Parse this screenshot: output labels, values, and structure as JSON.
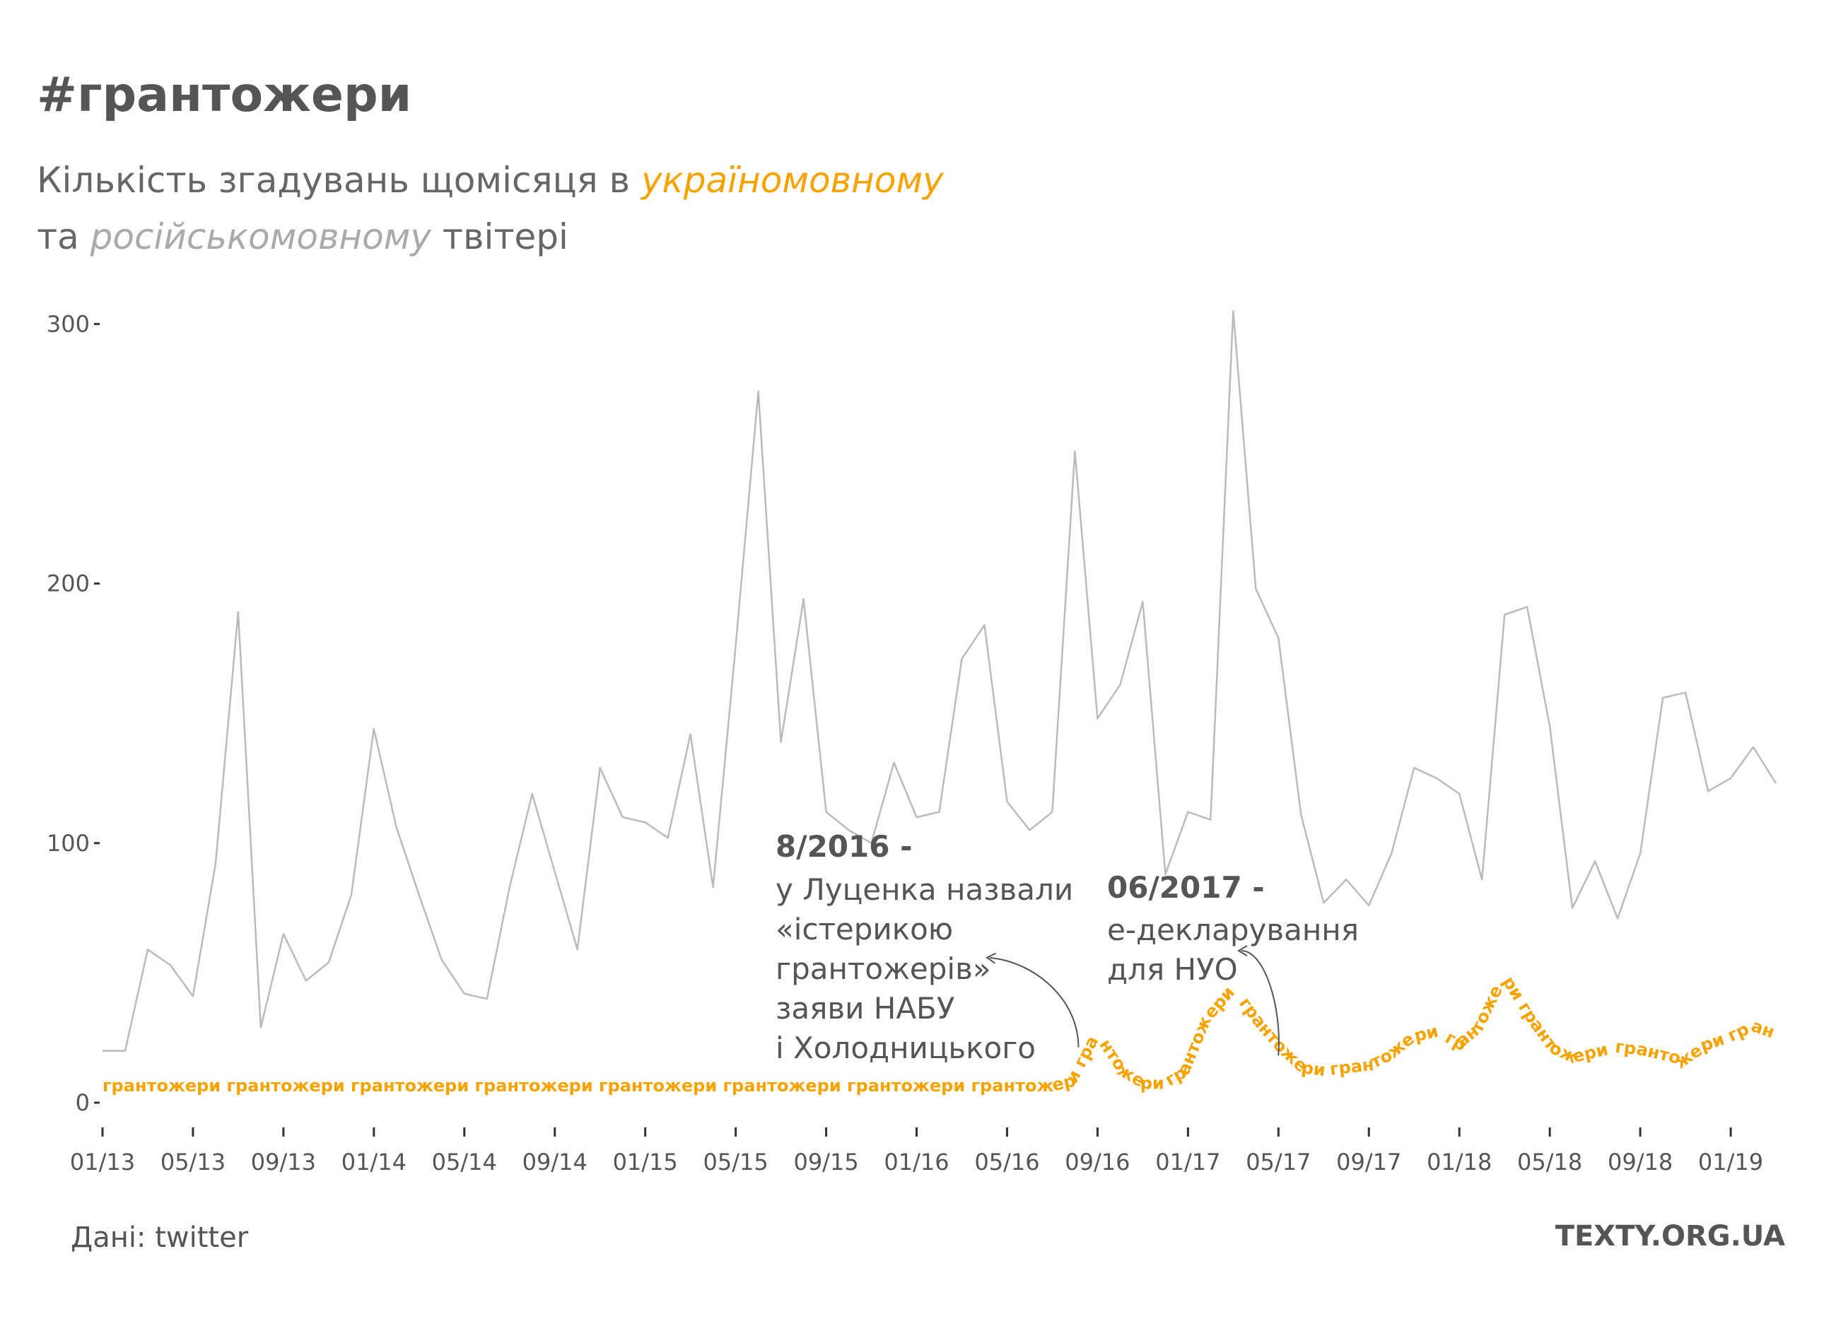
{
  "header": {
    "title": "#грантожери",
    "subtitle_prefix": "Кількість згадувань щомісяця в ",
    "subtitle_uk": "україномовному",
    "subtitle_mid": "та ",
    "subtitle_ru": "російськомовному",
    "subtitle_suffix": " твітері"
  },
  "footer": {
    "source": "Дані: twitter",
    "brand": "TEXTY.ORG.UA"
  },
  "colors": {
    "ukrainian": "#F5A300",
    "russian": "#BBBBBB",
    "text": "#555555",
    "axis": "#333333"
  },
  "chart_data": {
    "type": "line",
    "title": "#грантожери",
    "ylim": [
      0,
      305
    ],
    "yticks": [
      0,
      100,
      200,
      300
    ],
    "x_tick_labels": [
      "01/13",
      "05/13",
      "09/13",
      "01/14",
      "05/14",
      "09/14",
      "01/15",
      "05/15",
      "09/15",
      "01/16",
      "05/16",
      "09/16",
      "01/17",
      "05/17",
      "09/17",
      "01/18",
      "05/18",
      "09/18",
      "01/19"
    ],
    "x_start": "2013-01",
    "x": [
      "2013-01",
      "2013-02",
      "2013-03",
      "2013-04",
      "2013-05",
      "2013-06",
      "2013-07",
      "2013-08",
      "2013-09",
      "2013-10",
      "2013-11",
      "2013-12",
      "2014-01",
      "2014-02",
      "2014-03",
      "2014-04",
      "2014-05",
      "2014-06",
      "2014-07",
      "2014-08",
      "2014-09",
      "2014-10",
      "2014-11",
      "2014-12",
      "2015-01",
      "2015-02",
      "2015-03",
      "2015-04",
      "2015-05",
      "2015-06",
      "2015-07",
      "2015-08",
      "2015-09",
      "2015-10",
      "2015-11",
      "2015-12",
      "2016-01",
      "2016-02",
      "2016-03",
      "2016-04",
      "2016-05",
      "2016-06",
      "2016-07",
      "2016-08",
      "2016-09",
      "2016-10",
      "2016-11",
      "2016-12",
      "2017-01",
      "2017-02",
      "2017-03",
      "2017-04",
      "2017-05",
      "2017-06",
      "2017-07",
      "2017-08",
      "2017-09",
      "2017-10",
      "2017-11",
      "2017-12",
      "2018-01",
      "2018-02",
      "2018-03",
      "2018-04",
      "2018-05",
      "2018-06",
      "2018-07",
      "2018-08",
      "2018-09",
      "2018-10",
      "2018-11",
      "2018-12",
      "2019-01",
      "2019-02",
      "2019-03"
    ],
    "series": [
      {
        "values": [
          20,
          20,
          59,
          53,
          41,
          92,
          189,
          29,
          65,
          47,
          54,
          80,
          144,
          106,
          80,
          55,
          42,
          40,
          83,
          119,
          89,
          59,
          129,
          110,
          108,
          102,
          142,
          83,
          176,
          274,
          139,
          194,
          112,
          105,
          100,
          131,
          110,
          112,
          171,
          184,
          116,
          105,
          112,
          251,
          148,
          161,
          193,
          88,
          112,
          109,
          305,
          198,
          179,
          111,
          77,
          86,
          76,
          96,
          129,
          125,
          119,
          86,
          188,
          191,
          145,
          75,
          93,
          71,
          96,
          156,
          158,
          120,
          125,
          137,
          123
        ]
      },
      {
        "word": "грантожери",
        "values": [
          3,
          3,
          3,
          3,
          3,
          3,
          3,
          3,
          3,
          3,
          3,
          3,
          3,
          3,
          3,
          3,
          3,
          3,
          3,
          3,
          3,
          3,
          3,
          3,
          3,
          3,
          3,
          3,
          3,
          3,
          3,
          3,
          3,
          3,
          3,
          3,
          3,
          3,
          3,
          3,
          3,
          3,
          3,
          5,
          22,
          9,
          4,
          4,
          9,
          30,
          40,
          28,
          18,
          10,
          9,
          10,
          11,
          15,
          22,
          24,
          19,
          26,
          44,
          30,
          18,
          14,
          16,
          18,
          17,
          15,
          13,
          19,
          22,
          26,
          23
        ]
      }
    ],
    "annotations": [
      {
        "date": "2016-08",
        "head": "8/2016 -",
        "lines": [
          "у Луценка назвали",
          "«істерикою",
          "грантожерів»",
          "заяви НАБУ",
          "і Холодницького"
        ]
      },
      {
        "date": "2017-06",
        "head": "06/2017 -",
        "lines": [
          "е-декларування",
          "для НУО"
        ]
      }
    ]
  }
}
